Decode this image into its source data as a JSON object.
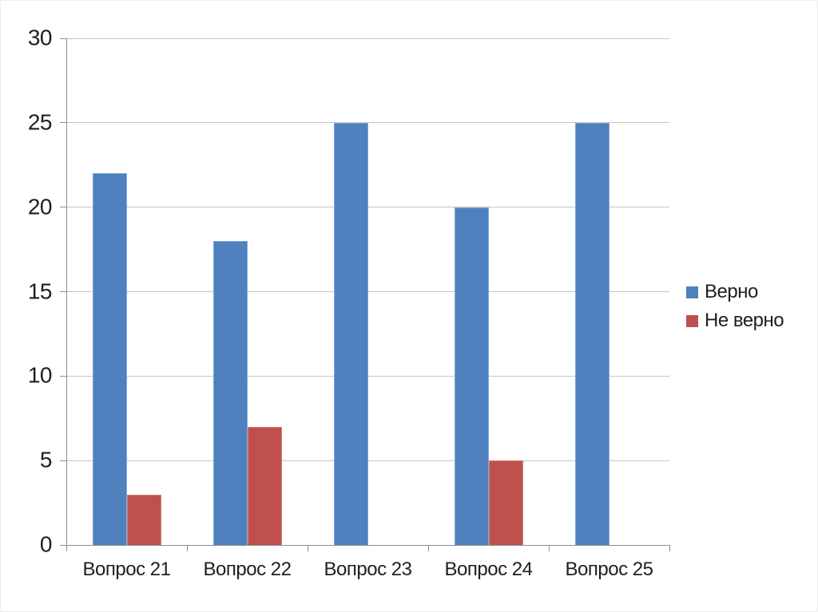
{
  "chart_data": {
    "type": "bar",
    "title": "",
    "xlabel": "",
    "ylabel": "",
    "categories": [
      "Вопрос 21",
      "Вопрос 22",
      "Вопрос 23",
      "Вопрос 24",
      "Вопрос 25"
    ],
    "series": [
      {
        "name": "Верно",
        "color": "#4E81BD",
        "border_color": "#7EA6D8",
        "values": [
          22,
          18,
          25,
          20,
          25
        ]
      },
      {
        "name": "Не верно",
        "color": "#C0504D",
        "border_color": "#D0827E",
        "values": [
          3,
          7,
          0,
          5,
          0
        ]
      }
    ],
    "ylim": [
      0,
      30
    ],
    "yticks": [
      0,
      5,
      10,
      15,
      20,
      25,
      30
    ],
    "grid": "horizontal",
    "legend_position": "right",
    "colors": {
      "gridline": "#C6C6C6",
      "axis": "#8E8E8E",
      "text": "#1F1F1F",
      "background": "#FFFFFF"
    }
  }
}
